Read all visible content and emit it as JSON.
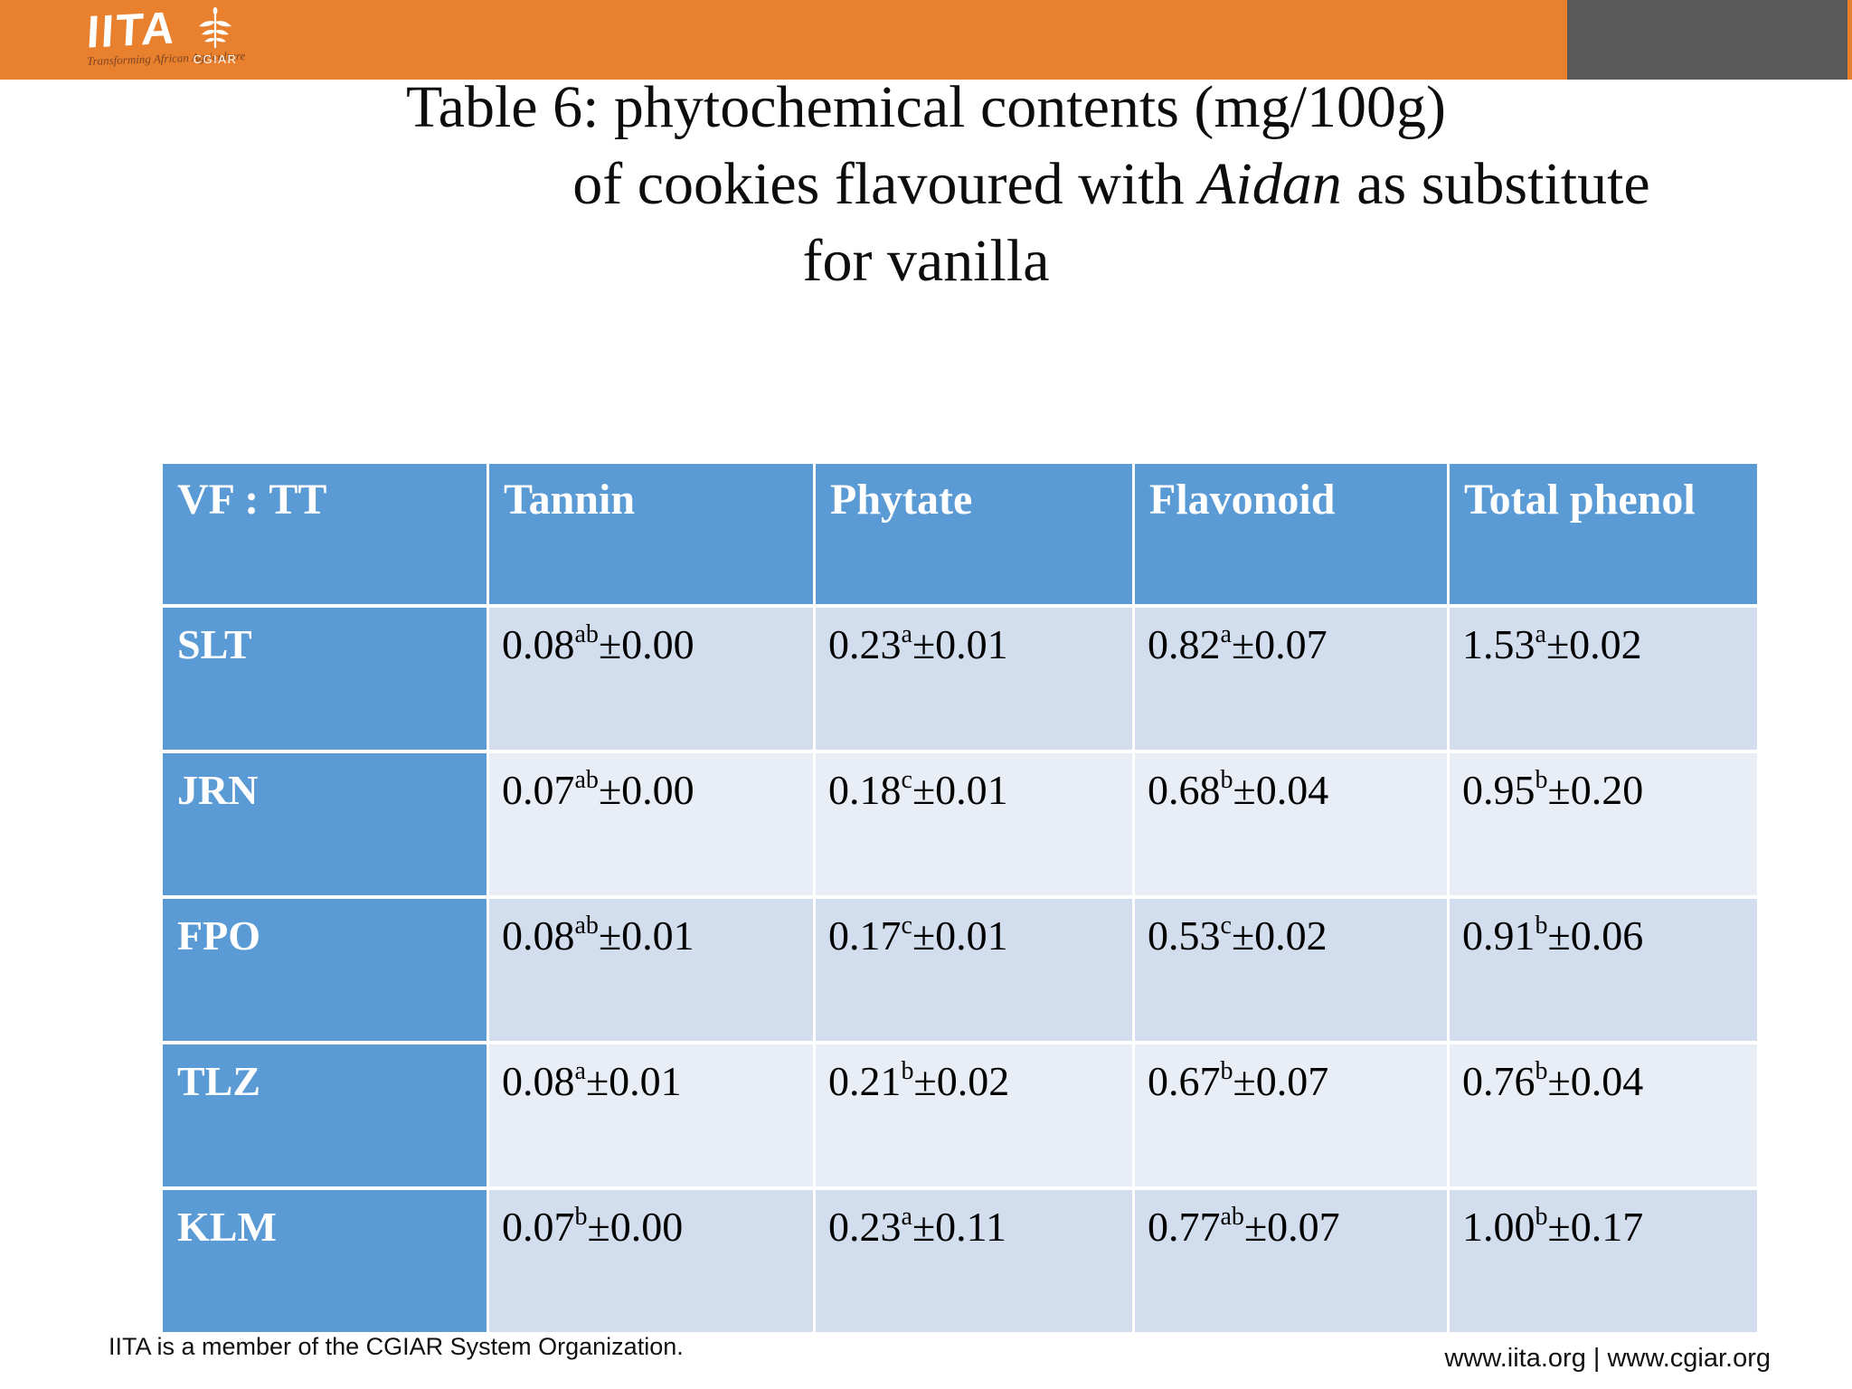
{
  "brand": {
    "iita_logo": "IITA",
    "iita_tagline": "Transforming African Agriculture",
    "cgiar_label": "CGIAR"
  },
  "colors": {
    "topbar_orange": "#E8802E",
    "corner_gray": "#595959",
    "table_header_blue": "#5B9BD5",
    "row_band_dark": "#D2DDED",
    "row_band_light": "#E9EDF6"
  },
  "title": {
    "line1": "Table 6: phytochemical contents (mg/100g)",
    "line2_prefix": "of cookies flavoured with ",
    "line2_italic": "Aidan",
    "line2_suffix": " as substitute",
    "line3": "for vanilla"
  },
  "chart_data": {
    "type": "table",
    "title": "Table 6: phytochemical contents (mg/100g) of cookies flavoured with Aidan as substitute for vanilla",
    "columns": [
      "VF : TT",
      "Tannin",
      "Phytate",
      "Flavonoid",
      "Total phenol"
    ],
    "rows": [
      [
        "SLT",
        "0.08ab±0.00",
        "0.23a±0.01",
        "0.82a±0.07",
        "1.53a±0.02"
      ],
      [
        "JRN",
        "0.07ab±0.00",
        "0.18c±0.01",
        "0.68b±0.04",
        "0.95b±0.20"
      ],
      [
        "FPO",
        "0.08ab±0.01",
        "0.17c±0.01",
        "0.53c±0.02",
        "0.91b±0.06"
      ],
      [
        "TLZ",
        "0.08a±0.01",
        "0.21b±0.02",
        "0.67b±0.07",
        "0.76b±0.04"
      ],
      [
        "KLM",
        "0.07b±0.00",
        "0.23a±0.11",
        "0.77ab±0.07",
        "1.00b±0.17"
      ]
    ]
  },
  "table": {
    "columns": [
      "VF : TT",
      "Tannin",
      "Phytate",
      "Flavonoid",
      "Total phenol"
    ],
    "rows": [
      {
        "label": "SLT",
        "cells": [
          {
            "value": "0.08",
            "sup": "ab",
            "pm": "±0.00"
          },
          {
            "value": "0.23",
            "sup": "a",
            "pm": "±0.01"
          },
          {
            "value": "0.82",
            "sup": "a",
            "pm": "±0.07"
          },
          {
            "value": "1.53",
            "sup": "a",
            "pm": "±0.02"
          }
        ]
      },
      {
        "label": "JRN",
        "cells": [
          {
            "value": "0.07",
            "sup": "ab",
            "pm": "±0.00"
          },
          {
            "value": "0.18",
            "sup": "c",
            "pm": "±0.01"
          },
          {
            "value": "0.68",
            "sup": "b",
            "pm": "±0.04"
          },
          {
            "value": "0.95",
            "sup": "b",
            "pm": "±0.20"
          }
        ]
      },
      {
        "label": "FPO",
        "cells": [
          {
            "value": "0.08",
            "sup": "ab",
            "pm": "±0.01"
          },
          {
            "value": "0.17",
            "sup": "c",
            "pm": "±0.01"
          },
          {
            "value": "0.53",
            "sup": "c",
            "pm": "±0.02"
          },
          {
            "value": "0.91",
            "sup": "b",
            "pm": "±0.06"
          }
        ]
      },
      {
        "label": "TLZ",
        "cells": [
          {
            "value": "0.08",
            "sup": "a",
            "pm": "±0.01"
          },
          {
            "value": "0.21",
            "sup": "b",
            "pm": "±0.02"
          },
          {
            "value": "0.67",
            "sup": "b",
            "pm": "±0.07"
          },
          {
            "value": "0.76",
            "sup": "b",
            "pm": "±0.04"
          }
        ]
      },
      {
        "label": "KLM",
        "cells": [
          {
            "value": "0.07",
            "sup": "b",
            "pm": "±0.00"
          },
          {
            "value": "0.23",
            "sup": "a",
            "pm": "±0.11"
          },
          {
            "value": "0.77",
            "sup": "ab",
            "pm": "±0.07"
          },
          {
            "value": "1.00",
            "sup": "b",
            "pm": "±0.17"
          }
        ]
      }
    ]
  },
  "footer": {
    "left": "IITA is a member of the CGIAR System Organization.",
    "right": "www.iita.org | www.cgiar.org"
  }
}
